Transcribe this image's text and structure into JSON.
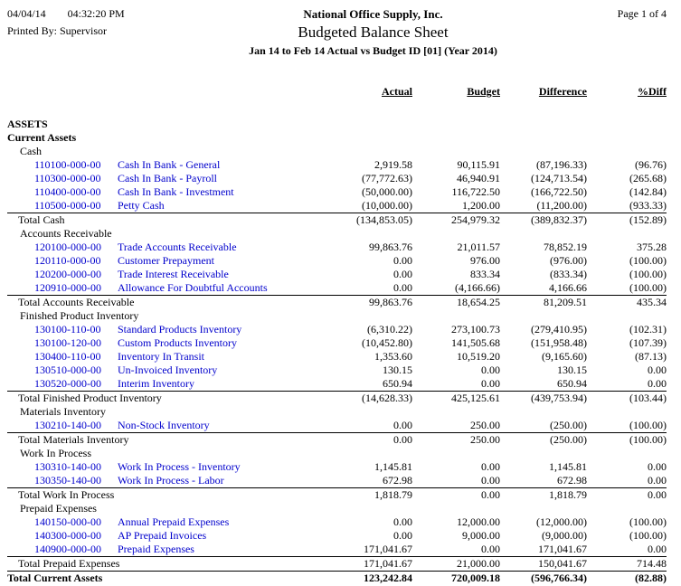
{
  "header": {
    "date": "04/04/14",
    "time": "04:32:20 PM",
    "printed_by": "Printed By: Supervisor",
    "company": "National Office Supply, Inc.",
    "title": "Budgeted Balance Sheet",
    "subtitle": "Jan 14 to Feb 14 Actual vs Budget ID [01] (Year 2014)",
    "page": "Page 1 of  4"
  },
  "colors": {
    "link": "#0000cc",
    "text": "#000000",
    "background": "#ffffff"
  },
  "table": {
    "columns": [
      "Actual",
      "Budget",
      "Difference",
      "%Diff"
    ],
    "rows": [
      {
        "type": "section",
        "label": "ASSETS"
      },
      {
        "type": "section",
        "label": "Current Assets"
      },
      {
        "type": "group",
        "label": "Cash"
      },
      {
        "type": "account",
        "number": "110100-000-00",
        "desc": "Cash In Bank - General",
        "values": [
          "2,919.58",
          "90,115.91",
          "(87,196.33)",
          "(96.76)"
        ]
      },
      {
        "type": "account",
        "number": "110300-000-00",
        "desc": "Cash In Bank - Payroll",
        "values": [
          "(77,772.63)",
          "46,940.91",
          "(124,713.54)",
          "(265.68)"
        ]
      },
      {
        "type": "account",
        "number": "110400-000-00",
        "desc": "Cash In Bank - Investment",
        "values": [
          "(50,000.00)",
          "116,722.50",
          "(166,722.50)",
          "(142.84)"
        ]
      },
      {
        "type": "account",
        "number": "110500-000-00",
        "desc": "Petty Cash",
        "values": [
          "(10,000.00)",
          "1,200.00",
          "(11,200.00)",
          "(933.33)"
        ]
      },
      {
        "type": "total",
        "label": "Total Cash",
        "values": [
          "(134,853.05)",
          "254,979.32",
          "(389,832.37)",
          "(152.89)"
        ]
      },
      {
        "type": "group",
        "label": "Accounts Receivable"
      },
      {
        "type": "account",
        "number": "120100-000-00",
        "desc": "Trade Accounts Receivable",
        "values": [
          "99,863.76",
          "21,011.57",
          "78,852.19",
          "375.28"
        ]
      },
      {
        "type": "account",
        "number": "120110-000-00",
        "desc": "Customer Prepayment",
        "values": [
          "0.00",
          "976.00",
          "(976.00)",
          "(100.00)"
        ]
      },
      {
        "type": "account",
        "number": "120200-000-00",
        "desc": "Trade Interest Receivable",
        "values": [
          "0.00",
          "833.34",
          "(833.34)",
          "(100.00)"
        ]
      },
      {
        "type": "account",
        "number": "120910-000-00",
        "desc": "Allowance For Doubtful Accounts",
        "values": [
          "0.00",
          "(4,166.66)",
          "4,166.66",
          "(100.00)"
        ]
      },
      {
        "type": "total",
        "label": "Total Accounts Receivable",
        "values": [
          "99,863.76",
          "18,654.25",
          "81,209.51",
          "435.34"
        ]
      },
      {
        "type": "group",
        "label": "Finished Product Inventory"
      },
      {
        "type": "account",
        "number": "130100-110-00",
        "desc": "Standard Products Inventory",
        "values": [
          "(6,310.22)",
          "273,100.73",
          "(279,410.95)",
          "(102.31)"
        ]
      },
      {
        "type": "account",
        "number": "130100-120-00",
        "desc": "Custom Products Inventory",
        "values": [
          "(10,452.80)",
          "141,505.68",
          "(151,958.48)",
          "(107.39)"
        ]
      },
      {
        "type": "account",
        "number": "130400-110-00",
        "desc": "Inventory In Transit",
        "values": [
          "1,353.60",
          "10,519.20",
          "(9,165.60)",
          "(87.13)"
        ]
      },
      {
        "type": "account",
        "number": "130510-000-00",
        "desc": "Un-Invoiced Inventory",
        "values": [
          "130.15",
          "0.00",
          "130.15",
          "0.00"
        ]
      },
      {
        "type": "account",
        "number": "130520-000-00",
        "desc": "Interim Inventory",
        "values": [
          "650.94",
          "0.00",
          "650.94",
          "0.00"
        ]
      },
      {
        "type": "total",
        "label": "Total Finished Product Inventory",
        "values": [
          "(14,628.33)",
          "425,125.61",
          "(439,753.94)",
          "(103.44)"
        ]
      },
      {
        "type": "group",
        "label": "Materials Inventory"
      },
      {
        "type": "account",
        "number": "130210-140-00",
        "desc": "Non-Stock Inventory",
        "values": [
          "0.00",
          "250.00",
          "(250.00)",
          "(100.00)"
        ]
      },
      {
        "type": "total",
        "label": "Total Materials Inventory",
        "values": [
          "0.00",
          "250.00",
          "(250.00)",
          "(100.00)"
        ]
      },
      {
        "type": "group",
        "label": "Work In Process"
      },
      {
        "type": "account",
        "number": "130310-140-00",
        "desc": "Work In Process - Inventory",
        "values": [
          "1,145.81",
          "0.00",
          "1,145.81",
          "0.00"
        ]
      },
      {
        "type": "account",
        "number": "130350-140-00",
        "desc": "Work In Process - Labor",
        "values": [
          "672.98",
          "0.00",
          "672.98",
          "0.00"
        ]
      },
      {
        "type": "total",
        "label": "Total Work In Process",
        "values": [
          "1,818.79",
          "0.00",
          "1,818.79",
          "0.00"
        ]
      },
      {
        "type": "group",
        "label": "Prepaid Expenses"
      },
      {
        "type": "account",
        "number": "140150-000-00",
        "desc": "Annual Prepaid Expenses",
        "values": [
          "0.00",
          "12,000.00",
          "(12,000.00)",
          "(100.00)"
        ]
      },
      {
        "type": "account",
        "number": "140300-000-00",
        "desc": "AP Prepaid Invoices",
        "values": [
          "0.00",
          "9,000.00",
          "(9,000.00)",
          "(100.00)"
        ]
      },
      {
        "type": "account",
        "number": "140900-000-00",
        "desc": "Prepaid Expenses",
        "values": [
          "171,041.67",
          "0.00",
          "171,041.67",
          "0.00"
        ]
      },
      {
        "type": "total",
        "label": "Total Prepaid Expenses",
        "values": [
          "171,041.67",
          "21,000.00",
          "150,041.67",
          "714.48"
        ]
      },
      {
        "type": "grandtotal",
        "label": "Total Current Assets",
        "values": [
          "123,242.84",
          "720,009.18",
          "(596,766.34)",
          "(82.88)"
        ]
      }
    ]
  }
}
